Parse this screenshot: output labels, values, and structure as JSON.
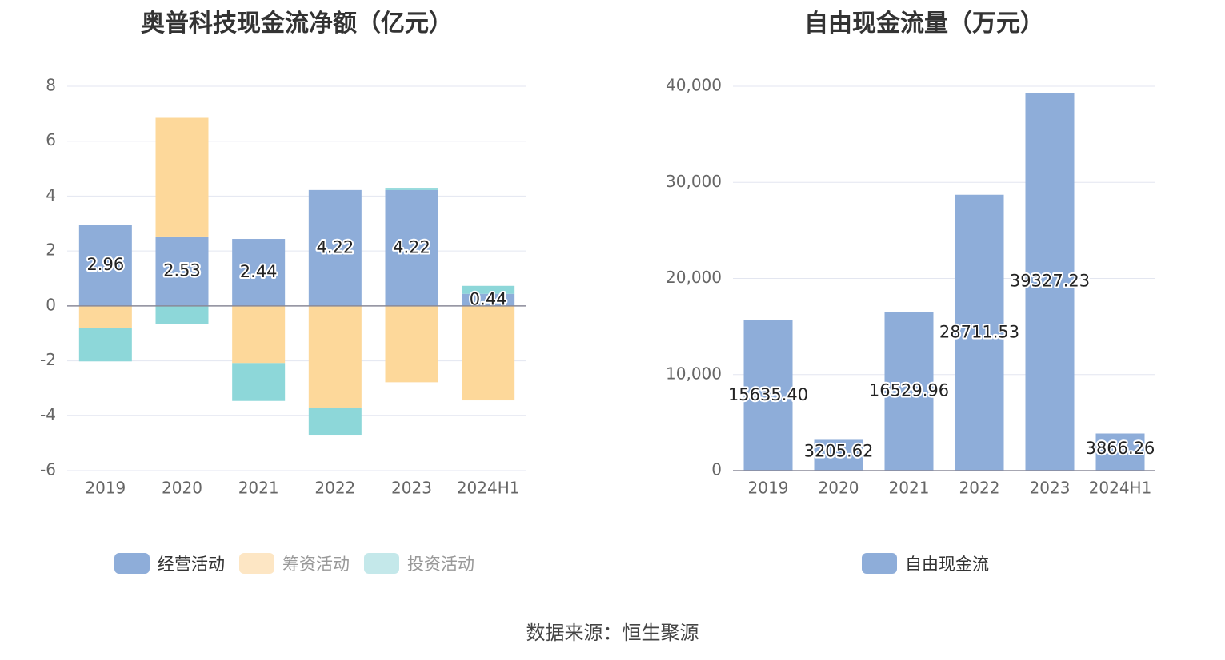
{
  "source_label": "数据来源：恒生聚源",
  "chart_data": [
    {
      "type": "bar",
      "stacked": true,
      "title": "奥普科技现金流净额（亿元）",
      "categories": [
        "2019",
        "2020",
        "2021",
        "2022",
        "2023",
        "2024H1"
      ],
      "ylim": [
        -6,
        8
      ],
      "yticks": [
        8,
        6,
        4,
        2,
        0,
        -2,
        -4,
        -6
      ],
      "series": [
        {
          "name": "经营活动",
          "color": "#8eadd9",
          "values": [
            2.96,
            2.53,
            2.44,
            4.22,
            4.22,
            0.44
          ]
        },
        {
          "name": "筹资活动",
          "color": "#fdd89a",
          "values": [
            -0.8,
            4.32,
            -2.08,
            -3.7,
            -2.78,
            -3.44
          ]
        },
        {
          "name": "投资活动",
          "color": "#8dd7d9",
          "values": [
            -1.22,
            -0.66,
            -1.38,
            -1.02,
            0.08,
            0.29
          ]
        }
      ],
      "data_labels": [
        "2.96",
        "2.53",
        "2.44",
        "4.22",
        "4.22",
        "0.44"
      ],
      "legend": [
        {
          "label": "经营活动",
          "color": "#8eadd9",
          "active": true
        },
        {
          "label": "筹资活动",
          "color": "#fde6c4",
          "active": false
        },
        {
          "label": "投资活动",
          "color": "#c4e8ea",
          "active": false
        }
      ]
    },
    {
      "type": "bar",
      "title": "自由现金流量（万元）",
      "categories": [
        "2019",
        "2020",
        "2021",
        "2022",
        "2023",
        "2024H1"
      ],
      "ylim": [
        0,
        40000
      ],
      "yticks": [
        "40,000",
        "30,000",
        "20,000",
        "10,000",
        "0"
      ],
      "ytick_values": [
        40000,
        30000,
        20000,
        10000,
        0
      ],
      "series": [
        {
          "name": "自由现金流",
          "color": "#8eadd9",
          "values": [
            15635.4,
            3205.62,
            16529.96,
            28711.53,
            39327.23,
            3866.26
          ]
        }
      ],
      "data_labels": [
        "15635.40",
        "3205.62",
        "16529.96",
        "28711.53",
        "39327.23",
        "3866.26"
      ],
      "legend": [
        {
          "label": "自由现金流",
          "color": "#8eadd9",
          "active": true
        }
      ]
    }
  ]
}
